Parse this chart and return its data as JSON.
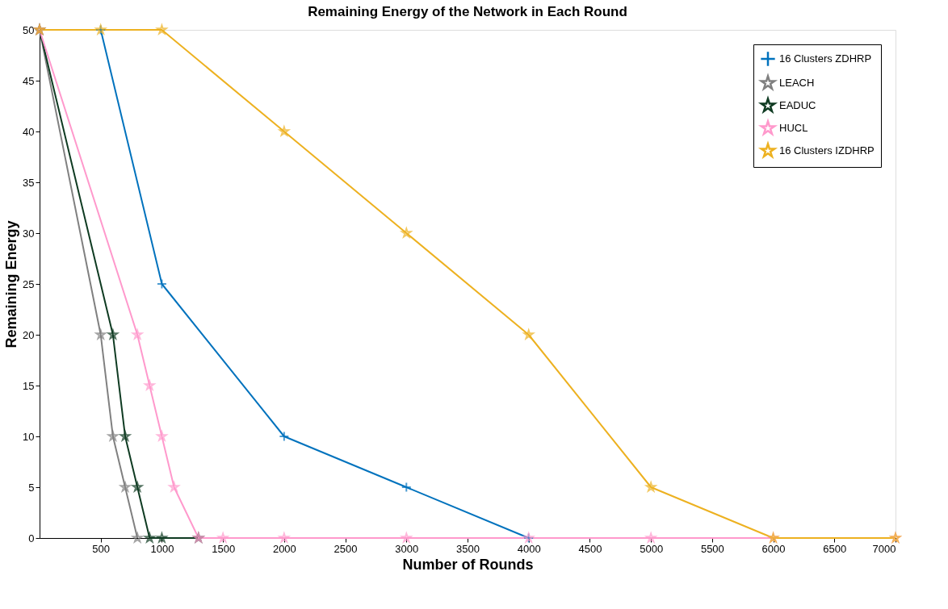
{
  "chart_data": {
    "type": "line",
    "title": "Remaining Energy of the Network in Each Round",
    "xlabel": "Number of Rounds",
    "ylabel": "Remaining Energy",
    "xlim": [
      0,
      7000
    ],
    "xticks": [
      500,
      1000,
      1500,
      2000,
      2500,
      3000,
      3500,
      4000,
      4500,
      5000,
      5500,
      6000,
      6500,
      7000
    ],
    "ylim": [
      0,
      50
    ],
    "yticks": [
      0,
      5,
      10,
      15,
      20,
      25,
      30,
      35,
      40,
      45,
      50
    ],
    "grid": false,
    "legend": "top right",
    "line_style": "solid",
    "series": [
      {
        "name": "16 Clusters ZDHRP",
        "color": "#0072bd",
        "marker": "cross",
        "x": [
          500,
          1000,
          2000,
          3000,
          4000
        ],
        "values": [
          50,
          25,
          10,
          5,
          0
        ]
      },
      {
        "name": "LEACH",
        "color": "#808080",
        "marker": "star",
        "x": [
          0,
          500,
          600,
          700,
          800
        ],
        "values": [
          50,
          20,
          10,
          5,
          0
        ]
      },
      {
        "name": "EADUC",
        "color": "#0f3b22",
        "marker": "star",
        "x": [
          0,
          600,
          700,
          800,
          900,
          1000,
          1300
        ],
        "values": [
          50,
          20,
          10,
          5,
          0,
          0,
          0
        ]
      },
      {
        "name": "HUCL",
        "color": "#ff99cc",
        "marker": "star",
        "x": [
          0,
          800,
          900,
          1000,
          1100,
          1300,
          1500,
          2000,
          3000,
          4000,
          5000,
          6000,
          7000
        ],
        "values": [
          50,
          20,
          15,
          10,
          5,
          0,
          0,
          0,
          0,
          0,
          0,
          0,
          0
        ]
      },
      {
        "name": "16 Clusters IZDHRP",
        "color": "#edb120",
        "marker": "star",
        "x": [
          0,
          500,
          1000,
          2000,
          3000,
          4000,
          5000,
          6000,
          7000
        ],
        "values": [
          50,
          50,
          50,
          40,
          30,
          20,
          5,
          0,
          0
        ]
      }
    ]
  }
}
